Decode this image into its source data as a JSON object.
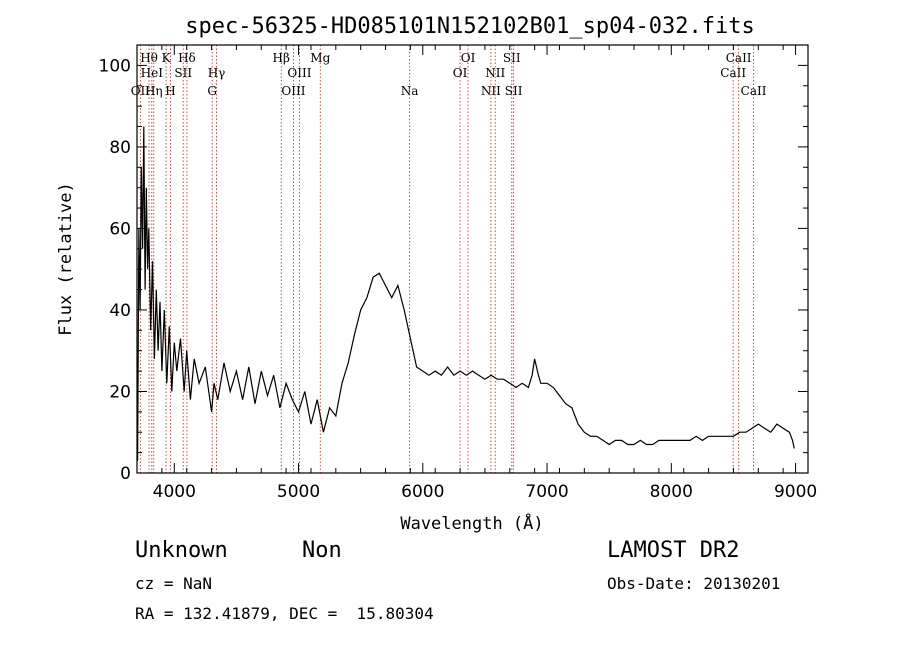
{
  "chart_data": {
    "type": "line",
    "title": "spec-56325-HD085101N152102B01_sp04-032.fits",
    "xlabel": "Wavelength (Å)",
    "ylabel": "Flux (relative)",
    "xlim": [
      3700,
      9100
    ],
    "ylim": [
      0,
      105
    ],
    "xticks": [
      4000,
      5000,
      6000,
      7000,
      8000,
      9000
    ],
    "yticks": [
      0,
      20,
      40,
      60,
      80,
      100
    ],
    "series": [
      {
        "values": [
          [
            3705,
            3
          ],
          [
            3715,
            60
          ],
          [
            3725,
            40
          ],
          [
            3735,
            75
          ],
          [
            3745,
            55
          ],
          [
            3755,
            85
          ],
          [
            3765,
            45
          ],
          [
            3775,
            70
          ],
          [
            3785,
            50
          ],
          [
            3795,
            60
          ],
          [
            3810,
            35
          ],
          [
            3825,
            52
          ],
          [
            3840,
            28
          ],
          [
            3855,
            45
          ],
          [
            3870,
            30
          ],
          [
            3885,
            42
          ],
          [
            3900,
            25
          ],
          [
            3920,
            40
          ],
          [
            3940,
            22
          ],
          [
            3960,
            36
          ],
          [
            3980,
            20
          ],
          [
            4000,
            32
          ],
          [
            4020,
            25
          ],
          [
            4050,
            33
          ],
          [
            4080,
            20
          ],
          [
            4100,
            30
          ],
          [
            4130,
            18
          ],
          [
            4160,
            28
          ],
          [
            4200,
            22
          ],
          [
            4250,
            26
          ],
          [
            4300,
            15
          ],
          [
            4320,
            22
          ],
          [
            4350,
            18
          ],
          [
            4400,
            27
          ],
          [
            4450,
            20
          ],
          [
            4500,
            25
          ],
          [
            4550,
            18
          ],
          [
            4600,
            26
          ],
          [
            4650,
            17
          ],
          [
            4700,
            25
          ],
          [
            4750,
            19
          ],
          [
            4800,
            24
          ],
          [
            4850,
            16
          ],
          [
            4900,
            22
          ],
          [
            4950,
            18
          ],
          [
            5000,
            15
          ],
          [
            5050,
            20
          ],
          [
            5100,
            12
          ],
          [
            5150,
            18
          ],
          [
            5200,
            10
          ],
          [
            5250,
            16
          ],
          [
            5300,
            14
          ],
          [
            5350,
            22
          ],
          [
            5400,
            27
          ],
          [
            5450,
            34
          ],
          [
            5500,
            40
          ],
          [
            5550,
            43
          ],
          [
            5600,
            48
          ],
          [
            5650,
            49
          ],
          [
            5700,
            46
          ],
          [
            5750,
            43
          ],
          [
            5800,
            46
          ],
          [
            5850,
            40
          ],
          [
            5900,
            33
          ],
          [
            5950,
            26
          ],
          [
            6000,
            25
          ],
          [
            6050,
            24
          ],
          [
            6100,
            25
          ],
          [
            6150,
            24
          ],
          [
            6200,
            26
          ],
          [
            6250,
            24
          ],
          [
            6300,
            25
          ],
          [
            6350,
            24
          ],
          [
            6400,
            25
          ],
          [
            6450,
            24
          ],
          [
            6500,
            23
          ],
          [
            6550,
            24
          ],
          [
            6600,
            23
          ],
          [
            6650,
            23
          ],
          [
            6700,
            22
          ],
          [
            6750,
            21
          ],
          [
            6800,
            22
          ],
          [
            6850,
            21
          ],
          [
            6880,
            24
          ],
          [
            6900,
            28
          ],
          [
            6930,
            24
          ],
          [
            6950,
            22
          ],
          [
            7000,
            22
          ],
          [
            7050,
            21
          ],
          [
            7100,
            19
          ],
          [
            7150,
            17
          ],
          [
            7200,
            16
          ],
          [
            7250,
            12
          ],
          [
            7300,
            10
          ],
          [
            7350,
            9
          ],
          [
            7400,
            9
          ],
          [
            7450,
            8
          ],
          [
            7500,
            7
          ],
          [
            7550,
            8
          ],
          [
            7600,
            8
          ],
          [
            7650,
            7
          ],
          [
            7700,
            7
          ],
          [
            7750,
            8
          ],
          [
            7800,
            7
          ],
          [
            7850,
            7
          ],
          [
            7900,
            8
          ],
          [
            7950,
            8
          ],
          [
            8000,
            8
          ],
          [
            8050,
            8
          ],
          [
            8100,
            8
          ],
          [
            8150,
            8
          ],
          [
            8200,
            9
          ],
          [
            8250,
            8
          ],
          [
            8300,
            9
          ],
          [
            8350,
            9
          ],
          [
            8400,
            9
          ],
          [
            8450,
            9
          ],
          [
            8500,
            9
          ],
          [
            8550,
            10
          ],
          [
            8600,
            10
          ],
          [
            8650,
            11
          ],
          [
            8700,
            12
          ],
          [
            8750,
            11
          ],
          [
            8800,
            10
          ],
          [
            8850,
            12
          ],
          [
            8900,
            11
          ],
          [
            8950,
            10
          ],
          [
            8975,
            8
          ],
          [
            8990,
            6
          ]
        ]
      }
    ],
    "lines": [
      {
        "label": "OII",
        "wave": 3727,
        "row": 3
      },
      {
        "label": "Hθ",
        "wave": 3797,
        "row": 1
      },
      {
        "label": "HeI",
        "wave": 3819,
        "row": 2
      },
      {
        "label": "Hη",
        "wave": 3835,
        "row": 3
      },
      {
        "label": "K",
        "wave": 3934,
        "row": 1
      },
      {
        "label": "H",
        "wave": 3969,
        "row": 3
      },
      {
        "label": "SII",
        "wave": 4072,
        "row": 2
      },
      {
        "label": "Hδ",
        "wave": 4102,
        "row": 1
      },
      {
        "label": "G",
        "wave": 4305,
        "row": 3
      },
      {
        "label": "Hγ",
        "wave": 4340,
        "row": 2
      },
      {
        "label": "Hβ",
        "wave": 4861,
        "row": 1
      },
      {
        "label": "OIII",
        "wave": 4959,
        "row": 3
      },
      {
        "label": "OIII",
        "wave": 5007,
        "row": 2
      },
      {
        "label": "Mg",
        "wave": 5175,
        "row": 1
      },
      {
        "label": "Na",
        "wave": 5894,
        "row": 3
      },
      {
        "label": "OI",
        "wave": 6300,
        "row": 2
      },
      {
        "label": "OI",
        "wave": 6364,
        "row": 1
      },
      {
        "label": "NII",
        "wave": 6548,
        "row": 3
      },
      {
        "label": "NII",
        "wave": 6583,
        "row": 2
      },
      {
        "label": "SII",
        "wave": 6716,
        "row": 1
      },
      {
        "label": "SII",
        "wave": 6731,
        "row": 3
      },
      {
        "label": "CaII",
        "wave": 8498,
        "row": 2
      },
      {
        "label": "CaII",
        "wave": 8542,
        "row": 1
      },
      {
        "label": "CaII",
        "wave": 8662,
        "row": 3
      }
    ]
  },
  "footer": {
    "class_type": "Unknown",
    "subclass": "Non",
    "survey": "LAMOST DR2",
    "redshift": "cz = NaN",
    "obs_date": "Obs-Date: 20130201",
    "coords": "RA = 132.41879, DEC =  15.80304"
  }
}
